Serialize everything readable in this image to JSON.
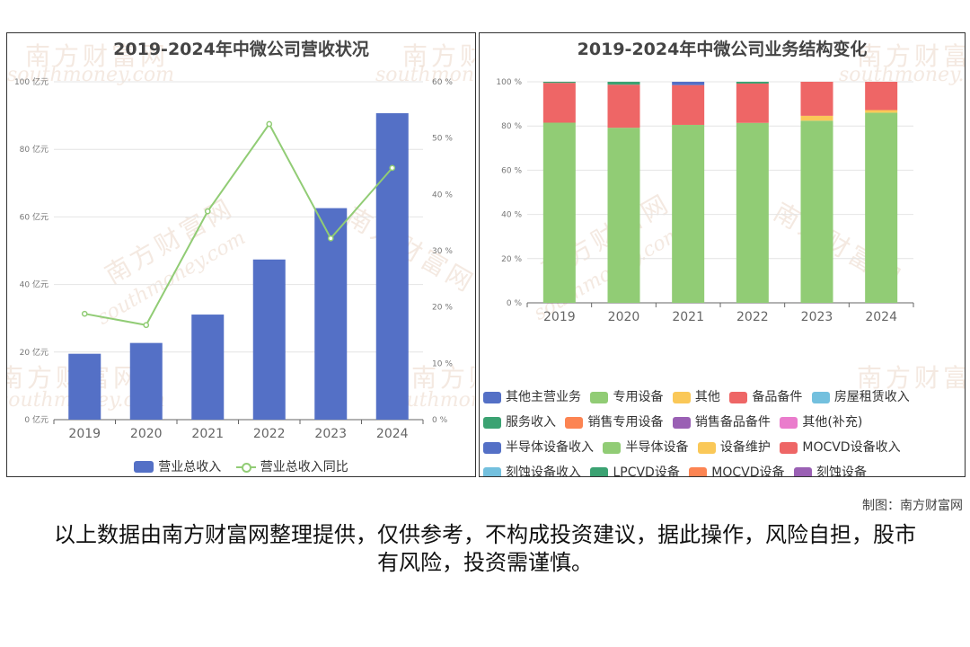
{
  "chart_data": [
    {
      "type": "bar",
      "title": "2019-2024年中微公司营收状况",
      "categories": [
        "2019",
        "2020",
        "2021",
        "2022",
        "2023",
        "2024"
      ],
      "series": [
        {
          "name": "营业总收入",
          "type": "bar",
          "axis": "left",
          "color": "#5470c6",
          "values": [
            19.5,
            22.7,
            31.1,
            47.4,
            62.6,
            90.7
          ]
        },
        {
          "name": "营业总收入同比",
          "type": "line",
          "axis": "right",
          "color": "#91cc75",
          "values": [
            18.8,
            16.8,
            37.0,
            52.5,
            32.2,
            44.7
          ]
        }
      ],
      "y_left": {
        "min": 0,
        "max": 100,
        "ticks": [
          "0 亿元",
          "20 亿元",
          "40 亿元",
          "60 亿元",
          "80 亿元",
          "100 亿元"
        ]
      },
      "y_right": {
        "min": 0,
        "max": 60,
        "ticks": [
          "0 %",
          "10 %",
          "20 %",
          "30 %",
          "40 %",
          "50 %",
          "60 %"
        ]
      },
      "grid": true,
      "legend_position": "bottom"
    },
    {
      "type": "bar",
      "stacked": true,
      "title": "2019-2024年中微公司业务结构变化",
      "categories": [
        "2019",
        "2020",
        "2021",
        "2022",
        "2023",
        "2024"
      ],
      "series": [
        {
          "name": "专用设备",
          "color": "#91cc75",
          "values": [
            81.5,
            79.2,
            80.5,
            81.4,
            82.4,
            86.0
          ]
        },
        {
          "name": "其他",
          "color": "#fac858",
          "values": [
            0,
            0,
            0,
            0,
            2.2,
            1.2
          ]
        },
        {
          "name": "备品备件",
          "color": "#ee6666",
          "values": [
            18.0,
            19.5,
            18.0,
            17.8,
            15.4,
            12.8
          ]
        },
        {
          "name": "服务收入",
          "color": "#3ba272",
          "values": [
            0.5,
            1.3,
            0,
            0.8,
            0,
            0
          ]
        },
        {
          "name": "其他主营业务",
          "color": "#5470c6",
          "values": [
            0,
            0,
            1.5,
            0,
            0,
            0
          ]
        }
      ],
      "y": {
        "min": 0,
        "max": 100,
        "ticks": [
          "0 %",
          "20 %",
          "40 %",
          "60 %",
          "80 %",
          "100 %"
        ]
      },
      "grid": true,
      "legend_position": "bottom",
      "legend": [
        {
          "name": "其他主营业务",
          "color": "#5470c6"
        },
        {
          "name": "专用设备",
          "color": "#91cc75"
        },
        {
          "name": "其他",
          "color": "#fac858"
        },
        {
          "name": "备品备件",
          "color": "#ee6666"
        },
        {
          "name": "房屋租赁收入",
          "color": "#73c0de"
        },
        {
          "name": "服务收入",
          "color": "#3ba272"
        },
        {
          "name": "销售专用设备",
          "color": "#fc8452"
        },
        {
          "name": "销售备品备件",
          "color": "#9a60b4"
        },
        {
          "name": "其他(补充)",
          "color": "#ea7ccc"
        },
        {
          "name": "半导体设备收入",
          "color": "#5470c6"
        },
        {
          "name": "半导体设备",
          "color": "#91cc75"
        },
        {
          "name": "设备维护",
          "color": "#fac858"
        },
        {
          "name": "MOCVD设备收入",
          "color": "#ee6666"
        },
        {
          "name": "刻蚀设备收入",
          "color": "#73c0de"
        },
        {
          "name": "LPCVD设备",
          "color": "#3ba272"
        },
        {
          "name": "MOCVD设备",
          "color": "#fc8452"
        },
        {
          "name": "刻蚀设备",
          "color": "#9a60b4"
        }
      ]
    }
  ],
  "watermark": {
    "cn": "南方财富网",
    "en": "southmoney.com"
  },
  "credit": "制图：南方财富网",
  "disclaimer": "以上数据由南方财富网整理提供，仅供参考，不构成投资建议，据此操作，风险自担，股市有风险，投资需谨慎。"
}
